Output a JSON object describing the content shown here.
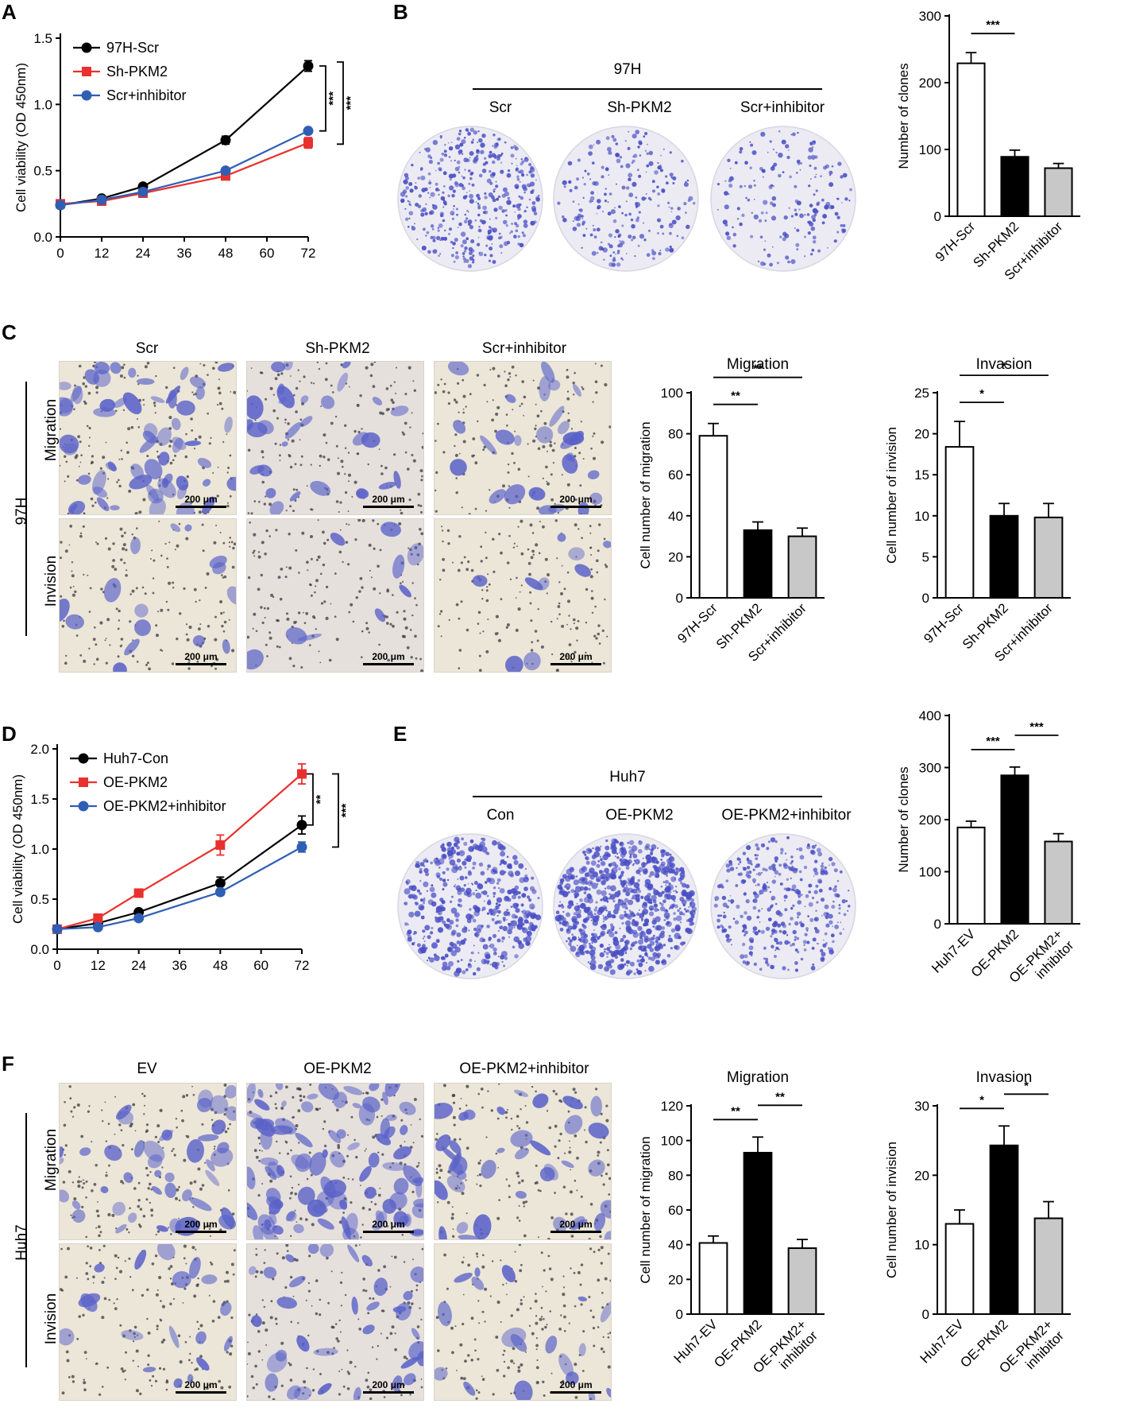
{
  "panels": {
    "A": {
      "letter": "A"
    },
    "B": {
      "letter": "B",
      "group": "97H",
      "dish_labels": [
        "Scr",
        "Sh-PKM2",
        "Scr+inhibitor"
      ]
    },
    "C": {
      "letter": "C",
      "side_group": "97H",
      "col_labels": [
        "Scr",
        "Sh-PKM2",
        "Scr+inhibitor"
      ],
      "row_labels": [
        "Migration",
        "Invision"
      ],
      "scalebar": "200 μm"
    },
    "D": {
      "letter": "D"
    },
    "E": {
      "letter": "E",
      "group": "Huh7",
      "dish_labels": [
        "Con",
        "OE-PKM2",
        "OE-PKM2+inhibitor"
      ]
    },
    "F": {
      "letter": "F",
      "side_group": "Huh7",
      "col_labels": [
        "EV",
        "OE-PKM2",
        "OE-PKM2+inhibitor"
      ],
      "row_labels": [
        "Migration",
        "Invision"
      ],
      "scalebar": "200 μm"
    }
  },
  "colors": {
    "black": "#000000",
    "red": "#e8312f",
    "blue": "#2f5eb5",
    "gray": "#c8c8c8",
    "white": "#ffffff",
    "stain": "#4a4fc4"
  },
  "chart_data": [
    {
      "id": "A",
      "type": "line",
      "x": [
        0,
        12,
        24,
        48,
        72
      ],
      "series": [
        {
          "name": "97H-Scr",
          "color": "#000000",
          "values": [
            0.24,
            0.29,
            0.38,
            0.73,
            1.29
          ],
          "err": [
            0.01,
            0.01,
            0.015,
            0.03,
            0.04
          ]
        },
        {
          "name": "Sh-PKM2",
          "color": "#e8312f",
          "values": [
            0.25,
            0.27,
            0.33,
            0.46,
            0.71
          ],
          "err": [
            0.01,
            0.01,
            0.015,
            0.02,
            0.04
          ]
        },
        {
          "name": "Scr+inhibitor",
          "color": "#2f5eb5",
          "values": [
            0.24,
            0.28,
            0.34,
            0.5,
            0.8
          ],
          "err": [
            0.01,
            0.01,
            0.015,
            0.02,
            0.02
          ]
        }
      ],
      "xticks": [
        0,
        12,
        24,
        36,
        48,
        60,
        72
      ],
      "yticks": [
        0.0,
        0.5,
        1.0,
        1.5
      ],
      "ylim": [
        0,
        1.5
      ],
      "ylabel": "Cell viability (OD 450nm)",
      "sig": [
        "***",
        "***"
      ],
      "legend": "top-left"
    },
    {
      "id": "B",
      "type": "bar",
      "categories": [
        "97H-Scr",
        "Sh-PKM2",
        "Scr+inhibitor"
      ],
      "values": [
        229,
        89,
        72
      ],
      "err": [
        16,
        10,
        7
      ],
      "ylim": [
        0,
        300
      ],
      "yticks": [
        0,
        100,
        200,
        300
      ],
      "ylabel": "Number of clones",
      "sig": [
        "***",
        "***"
      ]
    },
    {
      "id": "C1",
      "type": "bar",
      "title": "Migration",
      "categories": [
        "97H-Scr",
        "Sh-PKM2",
        "Scr+inhibitor"
      ],
      "values": [
        79,
        33,
        30
      ],
      "err": [
        6,
        4,
        4
      ],
      "ylim": [
        0,
        100
      ],
      "yticks": [
        0,
        20,
        40,
        60,
        80,
        100
      ],
      "ylabel": "Cell number of migration",
      "sig": [
        "**",
        "**"
      ]
    },
    {
      "id": "C2",
      "type": "bar",
      "title": "Invasion",
      "categories": [
        "97H-Scr",
        "Sh-PKM2",
        "Scr+inhibitor"
      ],
      "values": [
        18.4,
        10,
        9.8
      ],
      "err": [
        3.1,
        1.5,
        1.7
      ],
      "ylim": [
        0,
        25
      ],
      "yticks": [
        0,
        5,
        10,
        15,
        20,
        25
      ],
      "ylabel": "Cell number of invision",
      "sig": [
        "*",
        "*"
      ]
    },
    {
      "id": "D",
      "type": "line",
      "x": [
        0,
        12,
        24,
        48,
        72
      ],
      "series": [
        {
          "name": "Huh7-Con",
          "color": "#000000",
          "values": [
            0.2,
            0.26,
            0.37,
            0.66,
            1.24
          ],
          "err": [
            0.01,
            0.01,
            0.02,
            0.06,
            0.09
          ]
        },
        {
          "name": "OE-PKM2",
          "color": "#e8312f",
          "values": [
            0.2,
            0.31,
            0.56,
            1.04,
            1.75
          ],
          "err": [
            0.01,
            0.02,
            0.03,
            0.1,
            0.1
          ]
        },
        {
          "name": "OE-PKM2+inhibitor",
          "color": "#2f5eb5",
          "values": [
            0.2,
            0.22,
            0.31,
            0.57,
            1.02
          ],
          "err": [
            0.01,
            0.01,
            0.02,
            0.03,
            0.05
          ]
        }
      ],
      "xticks": [
        0,
        12,
        24,
        36,
        48,
        60,
        72
      ],
      "yticks": [
        0.0,
        0.5,
        1.0,
        1.5,
        2.0
      ],
      "ylim": [
        0,
        2.0
      ],
      "ylabel": "Cell viability (OD 450nm)",
      "sig": [
        "**",
        "***"
      ],
      "legend": "top-left"
    },
    {
      "id": "E",
      "type": "bar",
      "categories": [
        "Huh7-EV",
        "OE-PKM2",
        "OE-PKM2+\ninhibitor"
      ],
      "values": [
        185,
        285,
        158
      ],
      "err": [
        12,
        16,
        15
      ],
      "ylim": [
        0,
        400
      ],
      "yticks": [
        0,
        100,
        200,
        300,
        400
      ],
      "ylabel": "Number of clones",
      "sig": [
        "***",
        "***"
      ]
    },
    {
      "id": "F1",
      "type": "bar",
      "title": "Migration",
      "categories": [
        "Huh7-EV",
        "OE-PKM2",
        "OE-PKM2+\ninhibitor"
      ],
      "values": [
        41,
        93,
        38
      ],
      "err": [
        4,
        9,
        5
      ],
      "ylim": [
        0,
        120
      ],
      "yticks": [
        0,
        20,
        40,
        60,
        80,
        100,
        120
      ],
      "ylabel": "Cell number of migration",
      "sig": [
        "**",
        "**"
      ]
    },
    {
      "id": "F2",
      "type": "bar",
      "title": "Invasion",
      "categories": [
        "Huh7-EV",
        "OE-PKM2",
        "OE-PKM2+\ninhibitor"
      ],
      "values": [
        13,
        24.3,
        13.8
      ],
      "err": [
        2,
        2.8,
        2.4
      ],
      "ylim": [
        0,
        30
      ],
      "yticks": [
        0,
        10,
        20,
        30
      ],
      "ylabel": "Cell number of invision",
      "sig": [
        "*",
        "*"
      ]
    }
  ]
}
